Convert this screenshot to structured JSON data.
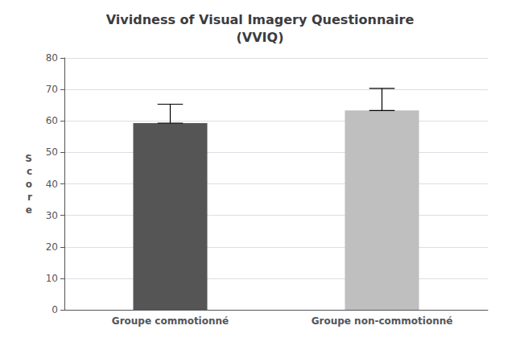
{
  "chart_data": {
    "type": "bar",
    "title": "Vividness of Visual Imagery Questionnaire\n(VVIQ)",
    "categories": [
      "Groupe commotionné",
      "Groupe non-commotionné"
    ],
    "values": [
      59.3,
      63.3
    ],
    "errors_up": [
      6.0,
      7.0
    ],
    "colors": [
      "#555555",
      "#c0bfbf"
    ],
    "ylabel": "S\nc\no\nr\ne",
    "ylim": [
      0,
      80
    ],
    "yticks": [
      0,
      10,
      20,
      30,
      40,
      50,
      60,
      70,
      80
    ],
    "grid": true
  }
}
